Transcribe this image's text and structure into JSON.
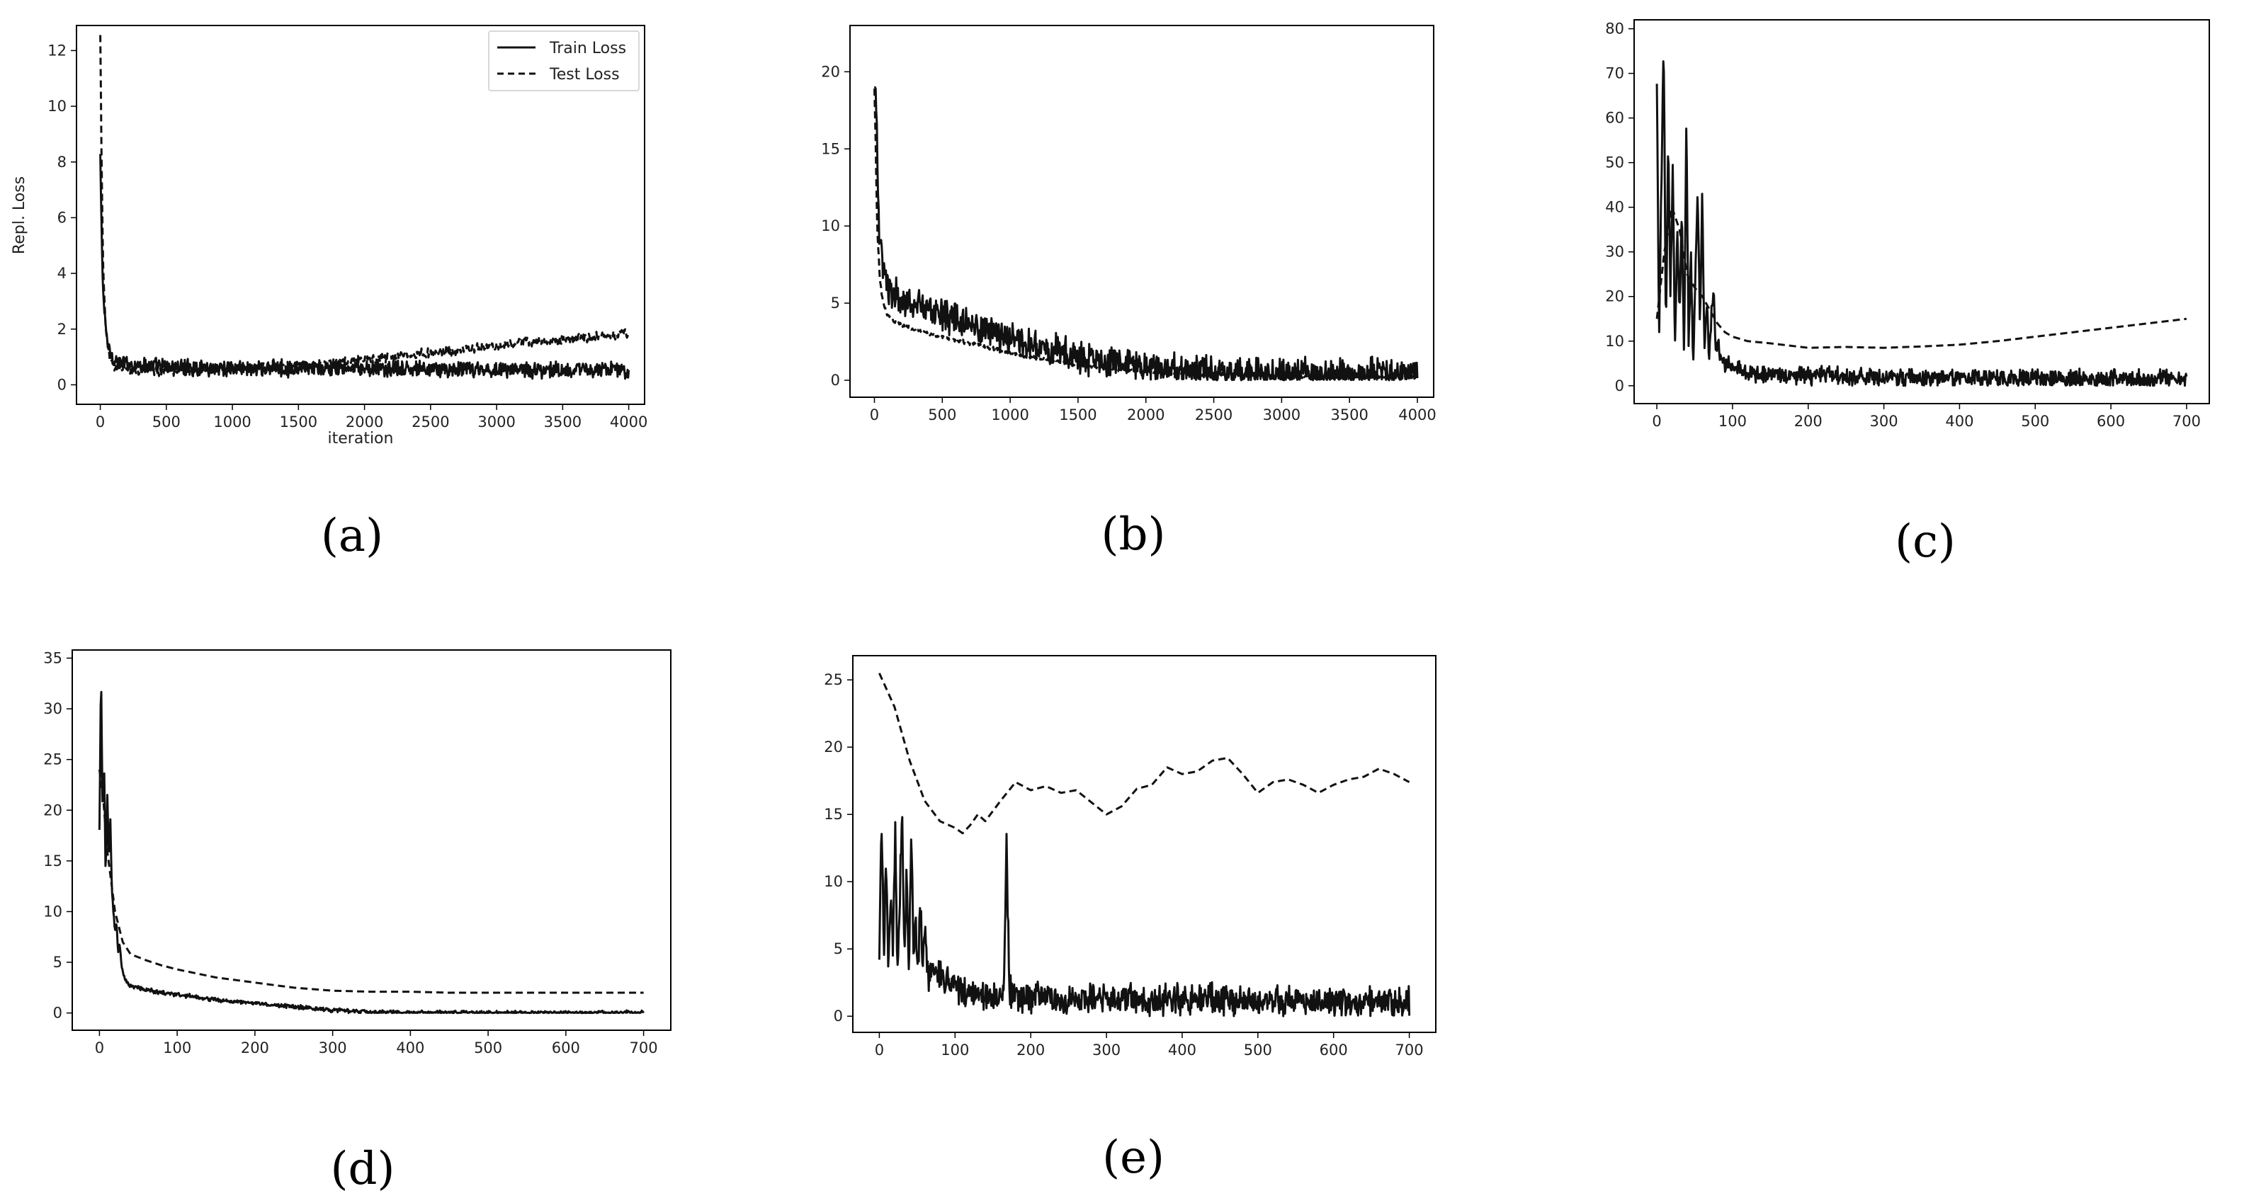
{
  "chart_data": [
    {
      "panel": "a",
      "type": "line",
      "caption": "(a)",
      "xlabel": "iteration",
      "ylabel": "Repl. Loss",
      "xlim": [
        -180,
        4120
      ],
      "ylim": [
        -0.7,
        12.9
      ],
      "xticks": [
        0,
        500,
        1000,
        1500,
        2000,
        2500,
        3000,
        3500,
        4000
      ],
      "yticks": [
        0,
        2,
        4,
        6,
        8,
        10,
        12
      ],
      "legend": {
        "position": "top-right",
        "entries": [
          "Train Loss",
          "Test Loss"
        ]
      },
      "series": [
        {
          "name": "Train Loss",
          "style": "solid",
          "x": [
            0,
            10,
            20,
            40,
            60,
            80,
            100,
            150,
            200,
            300,
            400,
            500,
            700,
            900,
            1100,
            1300,
            1500,
            1700,
            1900,
            2100,
            2300,
            2500,
            2700,
            2900,
            3100,
            3300,
            3500,
            3700,
            3900,
            4000
          ],
          "values": [
            8.2,
            5.5,
            3.5,
            2.0,
            1.4,
            1.1,
            0.9,
            0.8,
            0.75,
            0.7,
            0.68,
            0.65,
            0.63,
            0.62,
            0.6,
            0.6,
            0.58,
            0.58,
            0.57,
            0.57,
            0.56,
            0.56,
            0.55,
            0.55,
            0.55,
            0.54,
            0.54,
            0.54,
            0.53,
            0.53
          ],
          "noise": 0.35
        },
        {
          "name": "Test Loss",
          "style": "dashed",
          "x": [
            0,
            10,
            20,
            40,
            60,
            80,
            100,
            150,
            200,
            300,
            500,
            700,
            900,
            1100,
            1300,
            1500,
            1700,
            1900,
            2100,
            2300,
            2500,
            2700,
            2900,
            3100,
            3300,
            3500,
            3700,
            3900,
            4000
          ],
          "values": [
            12.5,
            8.0,
            4.5,
            2.0,
            1.2,
            0.9,
            0.7,
            0.6,
            0.55,
            0.5,
            0.5,
            0.5,
            0.55,
            0.6,
            0.65,
            0.7,
            0.75,
            0.85,
            0.95,
            1.05,
            1.15,
            1.25,
            1.35,
            1.45,
            1.55,
            1.62,
            1.7,
            1.8,
            1.85
          ],
          "noise": 0.2
        }
      ]
    },
    {
      "panel": "b",
      "type": "line",
      "caption": "(b)",
      "xlim": [
        -180,
        4120
      ],
      "ylim": [
        -1.1,
        23.0
      ],
      "xticks": [
        0,
        500,
        1000,
        1500,
        2000,
        2500,
        3000,
        3500,
        4000
      ],
      "yticks": [
        0,
        5,
        10,
        15,
        20
      ],
      "series": [
        {
          "style": "solid",
          "x": [
            0,
            10,
            20,
            30,
            40,
            60,
            80,
            100,
            150,
            200,
            300,
            400,
            500,
            700,
            900,
            1100,
            1300,
            1500,
            1700,
            1900,
            2100,
            2300,
            2500,
            2700,
            2900,
            3100,
            3300,
            3500,
            3700,
            3900,
            4000
          ],
          "values": [
            20.0,
            19.0,
            15.0,
            11.0,
            9.0,
            7.5,
            6.5,
            6.0,
            5.5,
            5.2,
            4.8,
            4.5,
            4.2,
            3.6,
            3.0,
            2.4,
            1.9,
            1.5,
            1.2,
            0.9,
            0.75,
            0.6,
            0.5,
            0.45,
            0.4,
            0.35,
            0.32,
            0.3,
            0.28,
            0.27,
            0.26
          ],
          "noise": 1.3
        },
        {
          "style": "dashed",
          "x": [
            0,
            10,
            20,
            40,
            60,
            80,
            100,
            150,
            200,
            300,
            400,
            500,
            700,
            900,
            1100,
            1300,
            1500,
            1700,
            1900,
            2100,
            2300,
            2500,
            2700,
            2900,
            3100,
            3300,
            3500,
            3700,
            3900,
            4000
          ],
          "values": [
            19.0,
            15.0,
            10.0,
            6.5,
            5.2,
            4.6,
            4.2,
            3.8,
            3.6,
            3.3,
            3.0,
            2.8,
            2.4,
            2.0,
            1.6,
            1.3,
            1.0,
            0.8,
            0.65,
            0.52,
            0.45,
            0.38,
            0.33,
            0.3,
            0.27,
            0.25,
            0.23,
            0.22,
            0.21,
            0.2
          ],
          "noise": 0.15
        }
      ]
    },
    {
      "panel": "c",
      "type": "line",
      "caption": "(c)",
      "xlim": [
        -30,
        730
      ],
      "ylim": [
        -4.0,
        82.0
      ],
      "xticks": [
        0,
        100,
        200,
        300,
        400,
        500,
        600,
        700
      ],
      "yticks": [
        0,
        10,
        20,
        30,
        40,
        50,
        60,
        70,
        80
      ],
      "series": [
        {
          "style": "solid",
          "x": [
            0,
            3,
            6,
            9,
            12,
            15,
            18,
            21,
            24,
            27,
            30,
            33,
            36,
            39,
            42,
            45,
            48,
            51,
            54,
            57,
            60,
            63,
            66,
            69,
            72,
            75,
            78,
            81,
            84,
            90,
            100,
            120,
            150,
            200,
            250,
            300,
            350,
            400,
            450,
            500,
            550,
            600,
            650,
            700
          ],
          "values": [
            68,
            10,
            45,
            79,
            12,
            55,
            20,
            50,
            8,
            35,
            15,
            40,
            5,
            60,
            10,
            30,
            4,
            25,
            45,
            12,
            43,
            8,
            20,
            5,
            15,
            22,
            7,
            10,
            6,
            5,
            4,
            3,
            2.5,
            2.2,
            2,
            1.9,
            1.8,
            1.7,
            1.6,
            1.5,
            1.5,
            1.4,
            1.4,
            1.3
          ],
          "noise": 2.5
        },
        {
          "style": "dashed",
          "x": [
            0,
            10,
            20,
            30,
            40,
            50,
            60,
            70,
            80,
            90,
            100,
            120,
            150,
            200,
            250,
            300,
            350,
            400,
            450,
            500,
            550,
            600,
            650,
            700
          ],
          "values": [
            15,
            30,
            40,
            35,
            25,
            22,
            20,
            17,
            14,
            12,
            11,
            10,
            9.5,
            8.5,
            8.7,
            8.5,
            8.8,
            9.2,
            10,
            11,
            12,
            13,
            14,
            15
          ]
        }
      ]
    },
    {
      "panel": "d",
      "type": "line",
      "caption": "(d)",
      "xlim": [
        -35,
        735
      ],
      "ylim": [
        -1.7,
        35.8
      ],
      "xticks": [
        0,
        100,
        200,
        300,
        400,
        500,
        600,
        700
      ],
      "yticks": [
        0,
        5,
        10,
        15,
        20,
        25,
        30,
        35
      ],
      "series": [
        {
          "style": "solid",
          "x": [
            0,
            2,
            4,
            6,
            8,
            10,
            12,
            14,
            16,
            18,
            20,
            22,
            24,
            26,
            28,
            30,
            35,
            40,
            50,
            60,
            80,
            100,
            150,
            200,
            250,
            300,
            350,
            400,
            450,
            500,
            550,
            600,
            650,
            700
          ],
          "values": [
            18,
            34,
            20,
            25,
            13,
            22,
            15,
            19,
            12,
            10,
            8,
            9,
            6,
            7,
            5,
            4,
            3,
            2.7,
            2.5,
            2.3,
            2.0,
            1.8,
            1.3,
            1.0,
            0.6,
            0.3,
            0.1,
            0.05,
            0.03,
            0.02,
            0.02,
            0.02,
            0.02,
            0.02
          ],
          "noise": 0.25
        },
        {
          "style": "dashed",
          "x": [
            0,
            5,
            10,
            20,
            30,
            40,
            60,
            80,
            100,
            150,
            200,
            250,
            300,
            350,
            400,
            450,
            500,
            550,
            600,
            650,
            700
          ],
          "values": [
            24,
            21,
            16,
            10,
            7,
            5.8,
            5.2,
            4.7,
            4.3,
            3.5,
            3.0,
            2.5,
            2.2,
            2.1,
            2.1,
            2.0,
            2.0,
            2.0,
            2.0,
            2.0,
            2.0
          ]
        }
      ]
    },
    {
      "panel": "e",
      "type": "line",
      "caption": "(e)",
      "xlim": [
        -35,
        735
      ],
      "ylim": [
        -1.2,
        26.8
      ],
      "xticks": [
        0,
        100,
        200,
        300,
        400,
        500,
        600,
        700
      ],
      "yticks": [
        0,
        5,
        10,
        15,
        20,
        25
      ],
      "series": [
        {
          "style": "solid",
          "x": [
            0,
            3,
            6,
            9,
            12,
            15,
            18,
            21,
            24,
            27,
            30,
            33,
            36,
            39,
            42,
            45,
            48,
            51,
            54,
            57,
            60,
            65,
            70,
            80,
            90,
            100,
            120,
            140,
            160,
            165,
            168,
            172,
            180,
            200,
            250,
            300,
            350,
            400,
            450,
            500,
            550,
            600,
            650,
            700
          ],
          "values": [
            5,
            15,
            4,
            12,
            3,
            9,
            5,
            14,
            3,
            8,
            16,
            4,
            10,
            3,
            14,
            5,
            7,
            3,
            9,
            4,
            6,
            3,
            4,
            3,
            2.5,
            2,
            1.8,
            1.6,
            1.5,
            3,
            13,
            2,
            1.5,
            1.4,
            1.3,
            1.3,
            1.2,
            1.2,
            1.2,
            1.1,
            1.1,
            1.1,
            1.0,
            1.0
          ],
          "noise": 1.4
        },
        {
          "style": "dashed",
          "x": [
            0,
            20,
            40,
            60,
            80,
            100,
            110,
            120,
            130,
            140,
            160,
            180,
            200,
            220,
            240,
            260,
            280,
            300,
            320,
            340,
            360,
            380,
            400,
            420,
            440,
            460,
            480,
            500,
            520,
            540,
            560,
            580,
            600,
            620,
            640,
            660,
            680,
            700
          ],
          "values": [
            25.5,
            23,
            19,
            16,
            14.5,
            14,
            13.6,
            14.2,
            15,
            14.5,
            16,
            17.4,
            16.8,
            17.1,
            16.6,
            16.8,
            15.9,
            15,
            15.6,
            16.9,
            17.2,
            18.5,
            18.0,
            18.2,
            19.0,
            19.2,
            18.0,
            16.6,
            17.4,
            17.6,
            17.2,
            16.6,
            17.2,
            17.6,
            17.8,
            18.4,
            18.0,
            17.4
          ]
        }
      ]
    }
  ]
}
